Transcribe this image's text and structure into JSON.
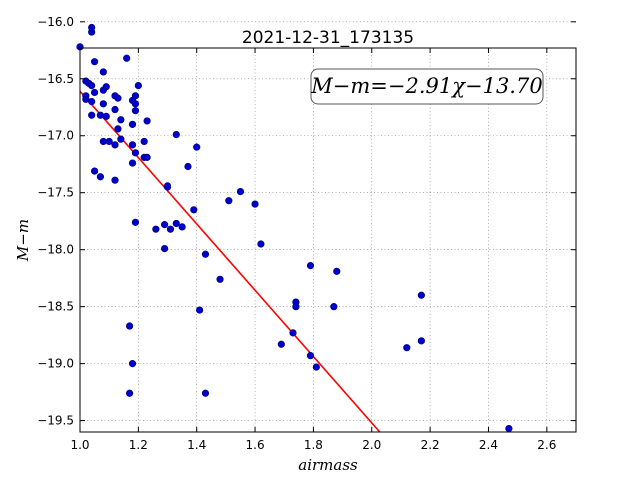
{
  "chart_data": {
    "type": "scatter",
    "title": "2021-12-31_173135",
    "xlabel": "airmass",
    "ylabel": "M−m",
    "xlim": [
      1.0,
      2.7
    ],
    "ylim": [
      -16.23,
      -19.6
    ],
    "y_inverted": true,
    "grid": true,
    "xticks": [
      1.0,
      1.2,
      1.4,
      1.6,
      1.8,
      2.0,
      2.2,
      2.4,
      2.6
    ],
    "xtick_labels": [
      "1.0",
      "1.2",
      "1.4",
      "1.6",
      "1.8",
      "2.0",
      "2.2",
      "2.4",
      "2.6"
    ],
    "yticks": [
      -16.0,
      -16.5,
      -17.0,
      -17.5,
      -18.0,
      -18.5,
      -19.0,
      -19.5
    ],
    "ytick_labels": [
      "−16.0",
      "−16.5",
      "−17.0",
      "−17.5",
      "−18.0",
      "−18.5",
      "−19.0",
      "−19.5"
    ],
    "annotation": "M−m=−2.91χ−13.70",
    "fit": {
      "slope": -2.91,
      "intercept": -13.7,
      "color": "#ff0000"
    },
    "point_color": "#0000cc",
    "points": [
      [
        1.0,
        -16.22
      ],
      [
        1.04,
        -16.05
      ],
      [
        1.04,
        -16.09
      ],
      [
        1.05,
        -16.35
      ],
      [
        1.02,
        -16.52
      ],
      [
        1.03,
        -16.54
      ],
      [
        1.04,
        -16.56
      ],
      [
        1.02,
        -16.65
      ],
      [
        1.02,
        -16.68
      ],
      [
        1.04,
        -16.7
      ],
      [
        1.04,
        -16.82
      ],
      [
        1.08,
        -16.44
      ],
      [
        1.09,
        -16.57
      ],
      [
        1.08,
        -16.6
      ],
      [
        1.08,
        -16.72
      ],
      [
        1.07,
        -16.82
      ],
      [
        1.09,
        -16.83
      ],
      [
        1.05,
        -16.62
      ],
      [
        1.12,
        -16.65
      ],
      [
        1.13,
        -16.67
      ],
      [
        1.12,
        -16.77
      ],
      [
        1.14,
        -16.86
      ],
      [
        1.13,
        -16.94
      ],
      [
        1.16,
        -16.32
      ],
      [
        1.18,
        -16.69
      ],
      [
        1.19,
        -16.65
      ],
      [
        1.2,
        -16.56
      ],
      [
        1.19,
        -16.72
      ],
      [
        1.19,
        -16.78
      ],
      [
        1.18,
        -16.9
      ],
      [
        1.23,
        -16.87
      ],
      [
        1.08,
        -17.05
      ],
      [
        1.1,
        -17.05
      ],
      [
        1.12,
        -17.08
      ],
      [
        1.14,
        -17.03
      ],
      [
        1.18,
        -17.08
      ],
      [
        1.19,
        -17.15
      ],
      [
        1.22,
        -17.05
      ],
      [
        1.05,
        -17.31
      ],
      [
        1.07,
        -17.36
      ],
      [
        1.12,
        -17.39
      ],
      [
        1.18,
        -17.24
      ],
      [
        1.22,
        -17.19
      ],
      [
        1.23,
        -17.19
      ],
      [
        1.33,
        -16.99
      ],
      [
        1.4,
        -17.1
      ],
      [
        1.37,
        -17.27
      ],
      [
        1.3,
        -17.44
      ],
      [
        1.3,
        -17.45
      ],
      [
        1.19,
        -17.76
      ],
      [
        1.26,
        -17.82
      ],
      [
        1.29,
        -17.78
      ],
      [
        1.31,
        -17.82
      ],
      [
        1.33,
        -17.77
      ],
      [
        1.35,
        -17.8
      ],
      [
        1.29,
        -17.99
      ],
      [
        1.39,
        -17.65
      ],
      [
        1.51,
        -17.57
      ],
      [
        1.55,
        -17.49
      ],
      [
        1.6,
        -17.6
      ],
      [
        1.62,
        -17.95
      ],
      [
        1.43,
        -18.04
      ],
      [
        1.48,
        -18.26
      ],
      [
        1.41,
        -18.53
      ],
      [
        1.74,
        -18.46
      ],
      [
        1.74,
        -18.5
      ],
      [
        1.79,
        -18.14
      ],
      [
        1.87,
        -18.5
      ],
      [
        1.88,
        -18.19
      ],
      [
        1.73,
        -18.73
      ],
      [
        1.69,
        -18.83
      ],
      [
        1.79,
        -18.93
      ],
      [
        1.81,
        -19.03
      ],
      [
        1.17,
        -18.67
      ],
      [
        1.18,
        -19.0
      ],
      [
        1.17,
        -19.26
      ],
      [
        1.43,
        -19.26
      ],
      [
        2.12,
        -18.86
      ],
      [
        2.17,
        -18.8
      ],
      [
        2.17,
        -18.4
      ],
      [
        2.47,
        -19.57
      ]
    ]
  }
}
